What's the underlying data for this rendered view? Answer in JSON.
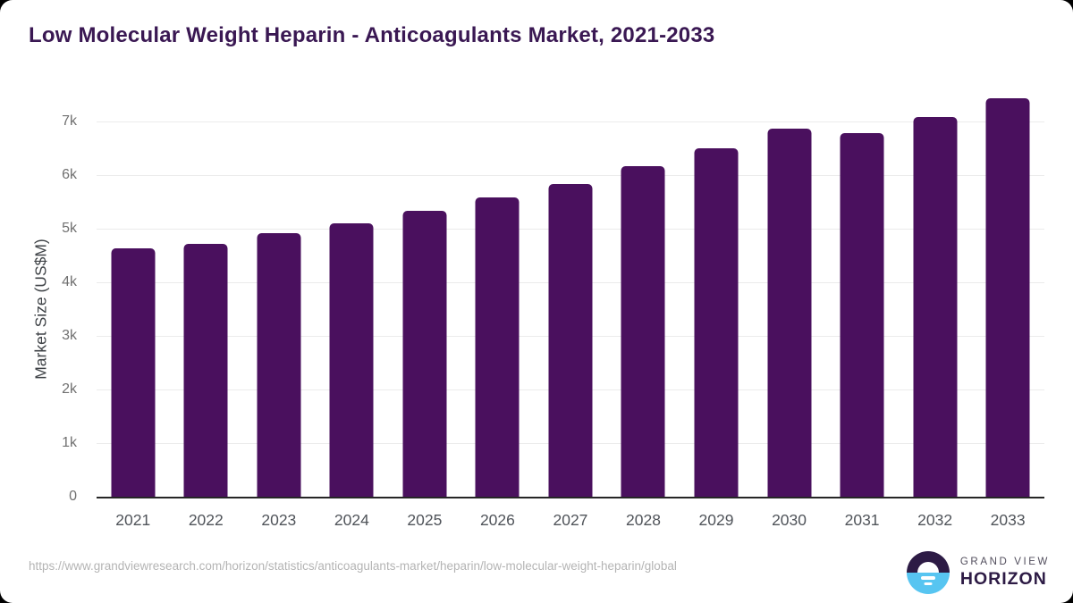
{
  "title": "Low Molecular Weight Heparin - Anticoagulants Market, 2021-2033",
  "chart_data": {
    "type": "bar",
    "title": "Low Molecular Weight Heparin - Anticoagulants Market, 2021-2033",
    "categories": [
      "2021",
      "2022",
      "2023",
      "2024",
      "2025",
      "2026",
      "2027",
      "2028",
      "2029",
      "2030",
      "2031",
      "2032",
      "2033"
    ],
    "values": [
      4630,
      4720,
      4920,
      5100,
      5330,
      5580,
      5840,
      6170,
      6500,
      6860,
      6780,
      7080,
      7430
    ],
    "xlabel": "",
    "ylabel": "Market Size (US$M)",
    "ylim": [
      0,
      7000
    ],
    "yticks": [
      {
        "value": 0,
        "label": "0"
      },
      {
        "value": 1000,
        "label": "1k"
      },
      {
        "value": 2000,
        "label": "2k"
      },
      {
        "value": 3000,
        "label": "3k"
      },
      {
        "value": 4000,
        "label": "4k"
      },
      {
        "value": 5000,
        "label": "5k"
      },
      {
        "value": 6000,
        "label": "6k"
      },
      {
        "value": 7000,
        "label": "7k"
      }
    ],
    "grid": true,
    "legend": "none",
    "bar_color": "#4a105e"
  },
  "footer": {
    "source_url": "https://www.grandviewresearch.com/horizon/statistics/anticoagulants-market/heparin/low-molecular-weight-heparin/global",
    "logo": {
      "top_text": "GRAND VIEW",
      "bottom_text": "HORIZON"
    }
  },
  "colors": {
    "title": "#3a1853",
    "bar": "#4a105e",
    "gridline": "#ebebeb",
    "axis_line": "#262626",
    "y_tick_text": "#707070",
    "x_tick_text": "#50545a",
    "source_text": "#b4b4b4",
    "logo_dark": "#2d1b45",
    "logo_blue": "#57c5f1"
  }
}
